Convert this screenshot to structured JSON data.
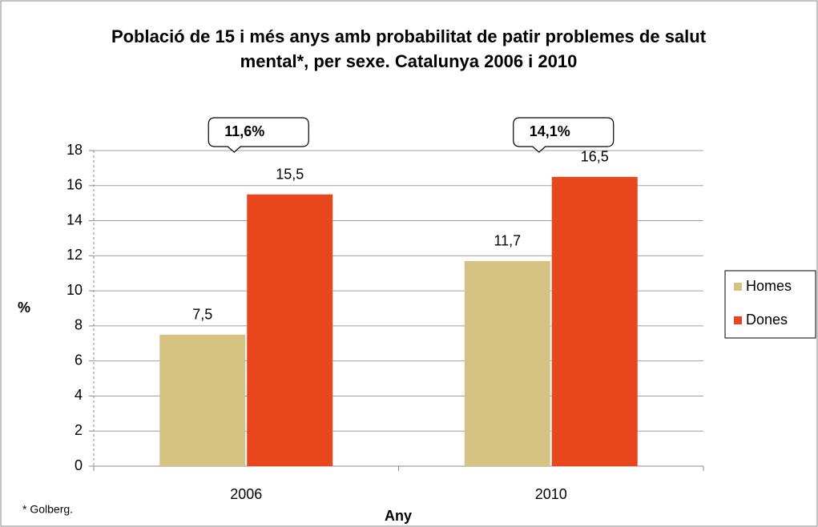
{
  "chart_data": {
    "type": "bar",
    "title": "Població de 15 i més anys amb probabilitat de patir problemes de salut mental*, per sexe. Catalunya 2006 i 2010",
    "categories": [
      "2006",
      "2010"
    ],
    "series": [
      {
        "name": "Homes",
        "color": "#d6c282",
        "values": [
          7.5,
          11.7
        ],
        "value_labels": [
          "7,5",
          "11,7"
        ]
      },
      {
        "name": "Dones",
        "color": "#e8461c",
        "values": [
          15.5,
          16.5
        ],
        "value_labels": [
          "15,5",
          "16,5"
        ]
      }
    ],
    "annotations": [
      "11,6%",
      "14,1%"
    ],
    "ylabel": "%",
    "xlabel": "Any",
    "footnote": "* Golberg.",
    "ylim": [
      0,
      18
    ],
    "yticks": [
      0,
      2,
      4,
      6,
      8,
      10,
      12,
      14,
      16,
      18
    ],
    "grid": true,
    "legend": "right"
  }
}
